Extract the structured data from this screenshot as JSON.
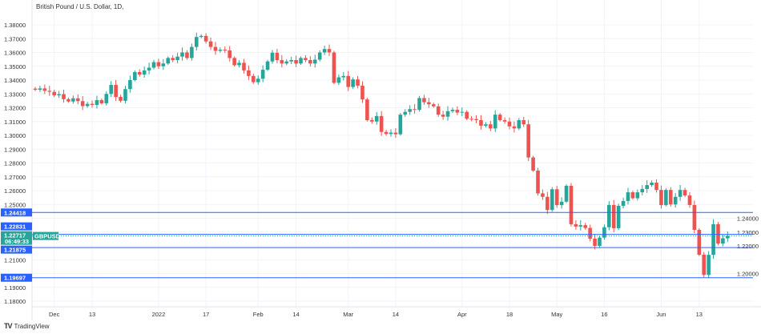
{
  "title": "British Pound / U.S. Dollar, 1D,",
  "symbol": "GBPUSD",
  "logo_text": "TradingView",
  "colors": {
    "up": "#26a69a",
    "down": "#ef5350",
    "level_line": "#2962ff",
    "badge_blue": "#2962ff",
    "price_badge": "#26a69a"
  },
  "chart_data": {
    "type": "candlestick",
    "title": "British Pound / U.S. Dollar, 1D,",
    "ylim": [
      1.175,
      1.385
    ],
    "yticks": [
      "1.38000",
      "1.37000",
      "1.36000",
      "1.35000",
      "1.34000",
      "1.33000",
      "1.32000",
      "1.31000",
      "1.30000",
      "1.29000",
      "1.28000",
      "1.27000",
      "1.26000",
      "1.25000",
      "1.24000",
      "1.23000",
      "1.22000",
      "1.21000",
      "1.20000",
      "1.19000",
      "1.18000"
    ],
    "xticks": [
      {
        "label": "Dec",
        "index": 4
      },
      {
        "label": "13",
        "index": 12
      },
      {
        "label": "2022",
        "index": 26
      },
      {
        "label": "17",
        "index": 36
      },
      {
        "label": "Feb",
        "index": 47
      },
      {
        "label": "14",
        "index": 55
      },
      {
        "label": "Mar",
        "index": 66
      },
      {
        "label": "14",
        "index": 76
      },
      {
        "label": "Apr",
        "index": 90
      },
      {
        "label": "18",
        "index": 100
      },
      {
        "label": "May",
        "index": 110
      },
      {
        "label": "16",
        "index": 120
      },
      {
        "label": "Jun",
        "index": 132
      },
      {
        "label": "13",
        "index": 140
      }
    ],
    "closes": [
      1.333,
      1.334,
      1.3322,
      1.3315,
      1.329,
      1.3298,
      1.3262,
      1.3245,
      1.3268,
      1.3248,
      1.3212,
      1.3228,
      1.322,
      1.3255,
      1.3232,
      1.33,
      1.3365,
      1.3278,
      1.325,
      1.3335,
      1.34,
      1.3458,
      1.344,
      1.347,
      1.349,
      1.353,
      1.35,
      1.352,
      1.356,
      1.3545,
      1.357,
      1.36,
      1.356,
      1.364,
      1.3712,
      1.372,
      1.368,
      1.364,
      1.3612,
      1.362,
      1.3615,
      1.356,
      1.3508,
      1.3525,
      1.347,
      1.343,
      1.3385,
      1.341,
      1.3475,
      1.3535,
      1.3598,
      1.3545,
      1.352,
      1.3535,
      1.3545,
      1.352,
      1.356,
      1.3545,
      1.352,
      1.3548,
      1.36,
      1.3625,
      1.36,
      1.338,
      1.342,
      1.343,
      1.335,
      1.3405,
      1.336,
      1.326,
      1.311,
      1.31,
      1.314,
      1.3025,
      1.301,
      1.302,
      1.3008,
      1.315,
      1.317,
      1.319,
      1.3185,
      1.327,
      1.324,
      1.3225,
      1.321,
      1.315,
      1.3135,
      1.3175,
      1.3185,
      1.3165,
      1.317,
      1.312,
      1.3118,
      1.311,
      1.307,
      1.308,
      1.305,
      1.315,
      1.311,
      1.31,
      1.3065,
      1.305,
      1.311,
      1.308,
      1.284,
      1.2745,
      1.258,
      1.2555,
      1.246,
      1.261,
      1.2495,
      1.252,
      1.2635,
      1.2357,
      1.234,
      1.235,
      1.233,
      1.2252,
      1.22,
      1.226,
      1.2335,
      1.2496,
      1.2328,
      1.249,
      1.2525,
      1.2588,
      1.2545,
      1.2588,
      1.2612,
      1.264,
      1.2658,
      1.2605,
      1.2495,
      1.2605,
      1.25,
      1.2555,
      1.2605,
      1.2565,
      1.2496,
      1.2316,
      1.2136,
      1.199,
      1.2135,
      1.2357,
      1.2217,
      1.2255,
      1.2272
    ],
    "levels": [
      {
        "label": "1.24418",
        "value": 1.24418
      },
      {
        "label": "1.22831",
        "value": 1.22831
      },
      {
        "label": "1.21875",
        "value": 1.21875
      },
      {
        "label": "1.19697",
        "value": 1.19697
      }
    ],
    "current_price": {
      "label": "1.22717",
      "value": 1.22717,
      "countdown": "06:49:33"
    }
  }
}
